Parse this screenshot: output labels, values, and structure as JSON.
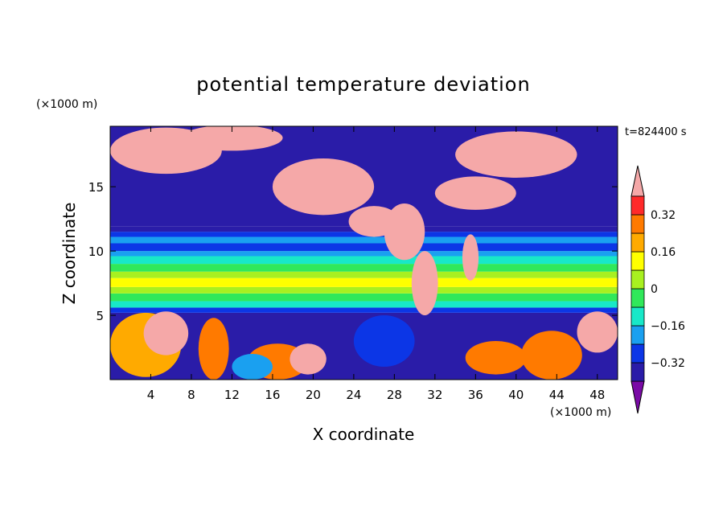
{
  "chart_data": {
    "type": "heatmap",
    "title": "potential temperature deviation",
    "xlabel": "X coordinate",
    "ylabel": "Z coordinate",
    "x_unit": "(×1000 m)",
    "y_unit": "(×1000 m)",
    "time_label": "t=824400 s",
    "xlim": [
      0,
      50
    ],
    "ylim": [
      0,
      19.7
    ],
    "x_ticks": [
      4,
      8,
      12,
      16,
      20,
      24,
      28,
      32,
      36,
      40,
      44,
      48
    ],
    "y_ticks": [
      5,
      10,
      15
    ],
    "colorbar": {
      "labels": [
        0.32,
        0.16,
        0,
        -0.16,
        -0.32
      ],
      "label_text": [
        "0.32",
        "0.16",
        "0",
        "−0.16",
        "−0.32"
      ],
      "levels": [
        -0.4,
        -0.32,
        -0.24,
        -0.16,
        -0.08,
        0,
        0.08,
        0.16,
        0.24,
        0.32,
        0.4
      ],
      "colors": [
        "#7a0aa6",
        "#2a1ca8",
        "#0c36e6",
        "#1aa0f0",
        "#18e8c8",
        "#30e85a",
        "#a8f020",
        "#ffff00",
        "#ffaa00",
        "#ff7a00",
        "#ff2a2a",
        "#f5a8a8"
      ],
      "extend": "both"
    },
    "bands": [
      {
        "z": [
          0.0,
          5.2
        ],
        "level": -0.4
      },
      {
        "z": [
          5.2,
          5.6
        ],
        "level": -0.3
      },
      {
        "z": [
          5.6,
          6.1
        ],
        "level": -0.1
      },
      {
        "z": [
          6.1,
          6.7
        ],
        "level": -0.05
      },
      {
        "z": [
          6.7,
          7.2
        ],
        "level": 0.02
      },
      {
        "z": [
          7.2,
          7.9
        ],
        "level": 0.09
      },
      {
        "z": [
          7.9,
          8.4
        ],
        "level": 0.02
      },
      {
        "z": [
          8.4,
          9.0
        ],
        "level": -0.05
      },
      {
        "z": [
          9.0,
          9.6
        ],
        "level": -0.12
      },
      {
        "z": [
          9.6,
          10.0
        ],
        "level": -0.2
      },
      {
        "z": [
          10.0,
          10.6
        ],
        "level": -0.28
      },
      {
        "z": [
          10.6,
          11.1
        ],
        "level": -0.2
      },
      {
        "z": [
          11.1,
          11.5
        ],
        "level": -0.3
      },
      {
        "z": [
          11.5,
          11.9
        ],
        "level": -0.36
      },
      {
        "z": [
          11.9,
          19.7
        ],
        "level": -0.4
      }
    ],
    "blobs": [
      {
        "x": 5.5,
        "z": 17.8,
        "rx": 5.5,
        "rz": 1.8,
        "level": 0.45
      },
      {
        "x": 12,
        "z": 18.8,
        "rx": 5,
        "rz": 1.0,
        "level": 0.45
      },
      {
        "x": 21,
        "z": 15.0,
        "rx": 5,
        "rz": 2.2,
        "level": 0.45
      },
      {
        "x": 26,
        "z": 12.3,
        "rx": 2.5,
        "rz": 1.2,
        "level": 0.45
      },
      {
        "x": 29,
        "z": 11.5,
        "rx": 2.0,
        "rz": 2.2,
        "level": 0.45
      },
      {
        "x": 31,
        "z": 7.5,
        "rx": 1.3,
        "rz": 2.5,
        "level": 0.45
      },
      {
        "x": 36,
        "z": 14.5,
        "rx": 4,
        "rz": 1.3,
        "level": 0.45
      },
      {
        "x": 40,
        "z": 17.5,
        "rx": 6,
        "rz": 1.8,
        "level": 0.45
      },
      {
        "x": 35.5,
        "z": 9.5,
        "rx": 0.8,
        "rz": 1.8,
        "level": 0.45
      },
      {
        "x": 3.5,
        "z": 2.7,
        "rx": 3.5,
        "rz": 2.5,
        "level": 0.22
      },
      {
        "x": 5.5,
        "z": 3.6,
        "rx": 2.2,
        "rz": 1.7,
        "level": 0.45
      },
      {
        "x": 10.2,
        "z": 2.4,
        "rx": 1.5,
        "rz": 2.4,
        "level": 0.3
      },
      {
        "x": 16.5,
        "z": 1.4,
        "rx": 3,
        "rz": 1.4,
        "level": 0.3
      },
      {
        "x": 19.5,
        "z": 1.6,
        "rx": 1.8,
        "rz": 1.2,
        "level": 0.45
      },
      {
        "x": 38,
        "z": 1.7,
        "rx": 3,
        "rz": 1.3,
        "level": 0.3
      },
      {
        "x": 43.5,
        "z": 1.9,
        "rx": 3,
        "rz": 1.9,
        "level": 0.3
      },
      {
        "x": 48,
        "z": 3.7,
        "rx": 2,
        "rz": 1.6,
        "level": 0.45
      },
      {
        "x": 27,
        "z": 3.0,
        "rx": 3,
        "rz": 2.0,
        "level": -0.28
      },
      {
        "x": 14,
        "z": 1.0,
        "rx": 2,
        "rz": 1.0,
        "level": -0.2
      }
    ]
  }
}
